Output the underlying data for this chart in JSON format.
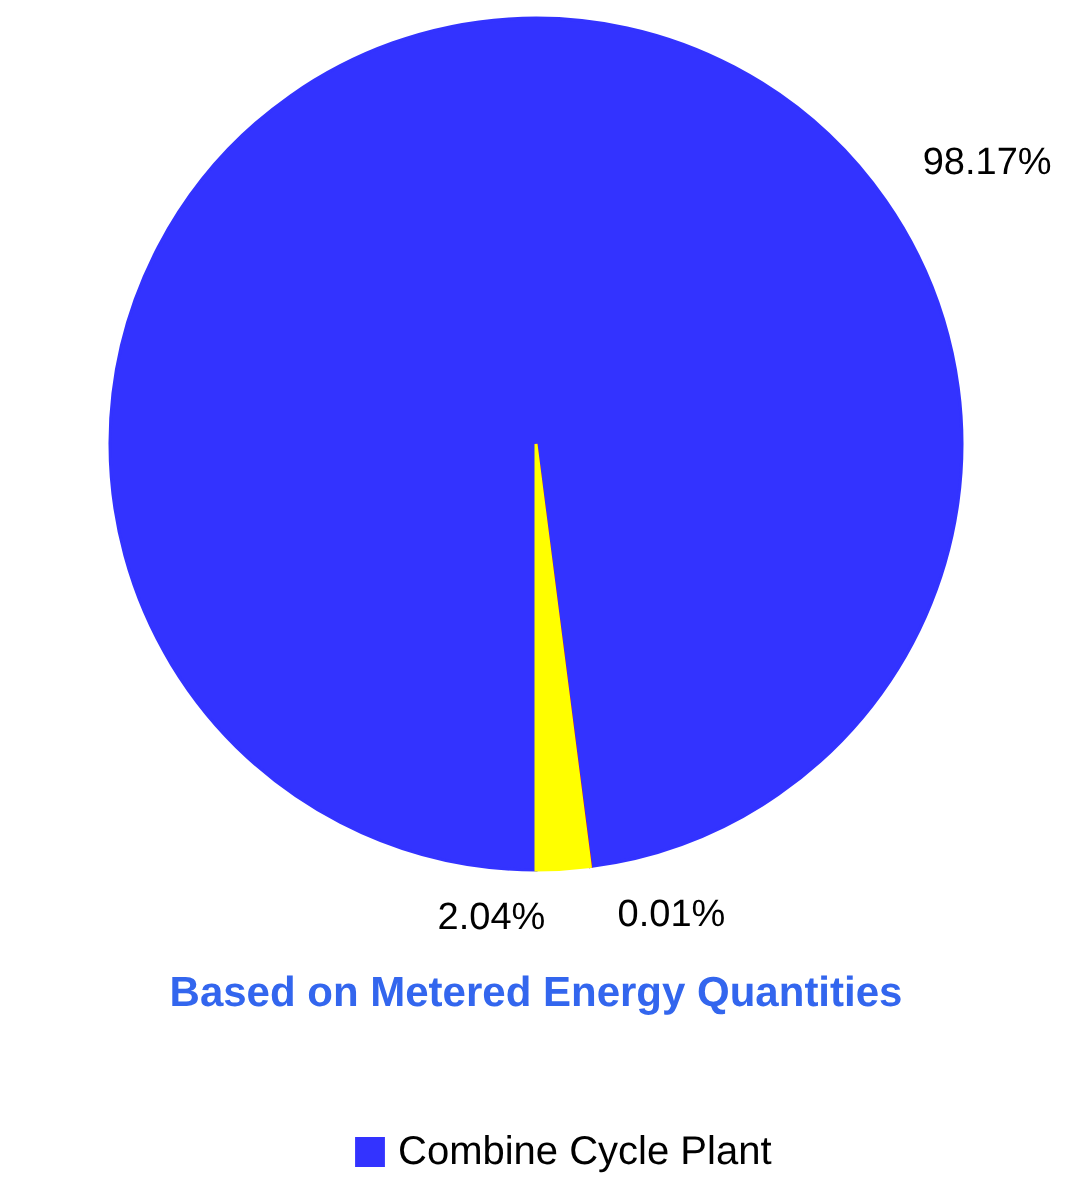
{
  "chart_data": {
    "type": "pie",
    "title": "Based on Metered Energy Quantities",
    "categories": [
      "Combine Cycle Plant",
      null,
      null
    ],
    "values": [
      98.17,
      0.01,
      2.04
    ],
    "colors": [
      "#3333ff",
      "#ff0000",
      "#ffff00"
    ],
    "value_labels": [
      "98.17%",
      "0.01%",
      "2.04%"
    ],
    "legend": "bottom"
  }
}
